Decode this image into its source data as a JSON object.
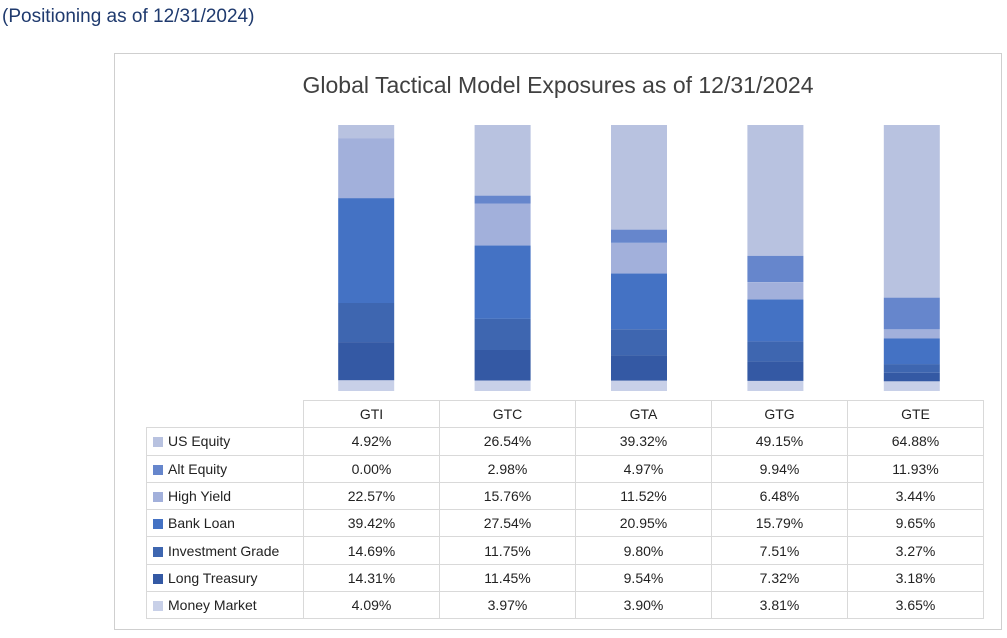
{
  "header": {
    "positioning": "(Positioning as of 12/31/2024)"
  },
  "chart_data": {
    "type": "bar",
    "stacked": true,
    "title": "Global Tactical Model Exposures as of 12/31/2024",
    "categories": [
      "GTI",
      "GTC",
      "GTA",
      "GTG",
      "GTE"
    ],
    "series": [
      {
        "name": "US Equity",
        "color": "#b8c2e0",
        "values": [
          4.92,
          26.54,
          39.32,
          49.15,
          64.88
        ],
        "labels": [
          "4.92%",
          "26.54%",
          "39.32%",
          "49.15%",
          "64.88%"
        ]
      },
      {
        "name": "Alt Equity",
        "color": "#6686cc",
        "values": [
          0.0,
          2.98,
          4.97,
          9.94,
          11.93
        ],
        "labels": [
          "0.00%",
          "2.98%",
          "4.97%",
          "9.94%",
          "11.93%"
        ]
      },
      {
        "name": "High Yield",
        "color": "#a2b0db",
        "values": [
          22.57,
          15.76,
          11.52,
          6.48,
          3.44
        ],
        "labels": [
          "22.57%",
          "15.76%",
          "11.52%",
          "6.48%",
          "3.44%"
        ]
      },
      {
        "name": "Bank Loan",
        "color": "#4472c4",
        "values": [
          39.42,
          27.54,
          20.95,
          15.79,
          9.65
        ],
        "labels": [
          "39.42%",
          "27.54%",
          "20.95%",
          "15.79%",
          "9.65%"
        ]
      },
      {
        "name": "Investment Grade",
        "color": "#3e66b0",
        "values": [
          14.69,
          11.75,
          9.8,
          7.51,
          3.27
        ],
        "labels": [
          "14.69%",
          "11.75%",
          "9.80%",
          "7.51%",
          "3.27%"
        ]
      },
      {
        "name": "Long Treasury",
        "color": "#3459a4",
        "values": [
          14.31,
          11.45,
          9.54,
          7.32,
          3.18
        ],
        "labels": [
          "14.31%",
          "11.45%",
          "9.54%",
          "7.32%",
          "3.18%"
        ]
      },
      {
        "name": "Money Market",
        "color": "#c8d0e8",
        "values": [
          4.09,
          3.97,
          3.9,
          3.81,
          3.65
        ],
        "labels": [
          "4.09%",
          "3.97%",
          "3.90%",
          "3.81%",
          "3.65%"
        ]
      }
    ],
    "ylim": [
      0,
      100
    ],
    "grid": false,
    "legend": "data-table-left"
  }
}
